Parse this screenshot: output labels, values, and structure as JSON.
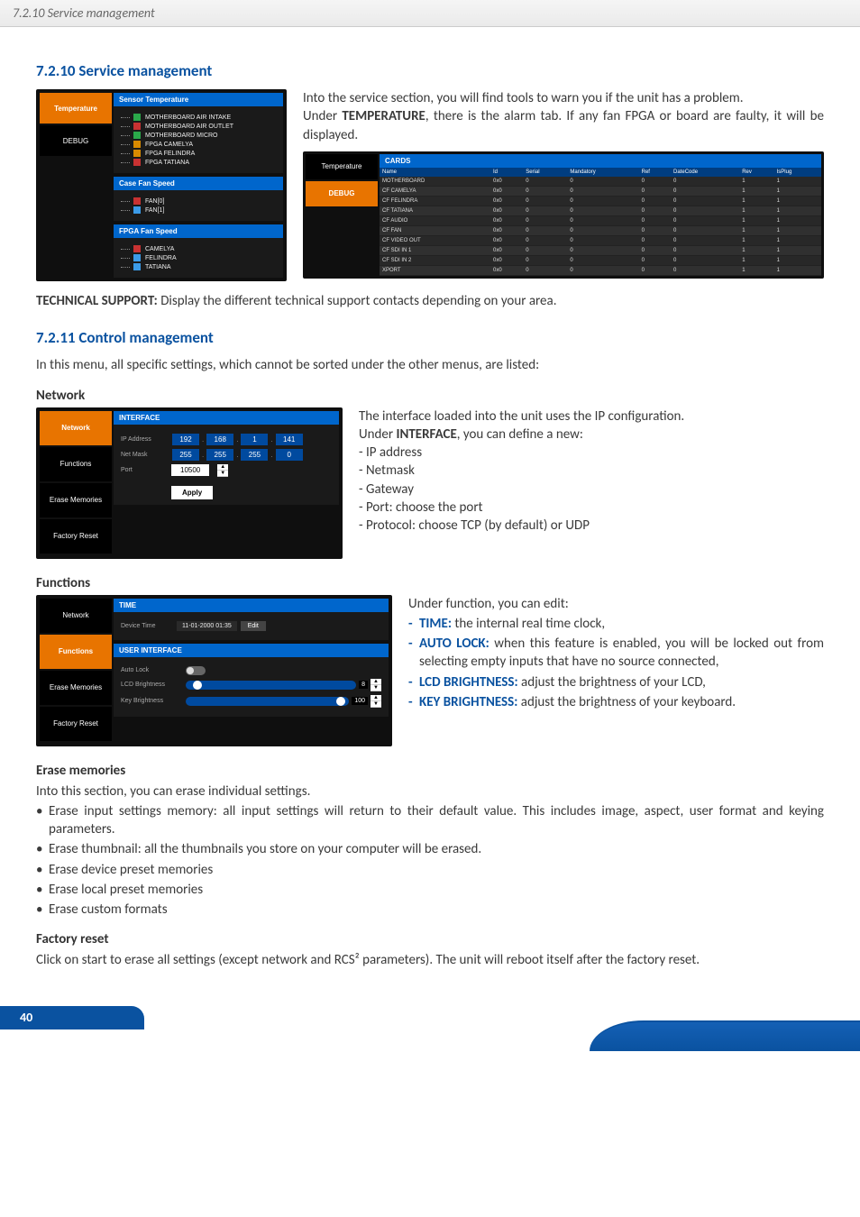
{
  "header": {
    "breadcrumb": "7.2.10 Service management"
  },
  "sec1": {
    "title": "7.2.10 Service management",
    "p1": "Into the service section, you will find tools to warn you if the unit has a problem.",
    "p2a": "Under ",
    "p2b": "TEMPERATURE",
    "p2c": ", there is the alarm tab. If any fan FPGA or board are faulty, it will be displayed.",
    "tech_label": "TECHNICAL SUPPORT:",
    "tech_text": " Display the different technical support contacts depending on your area."
  },
  "shot_temp": {
    "tab_active": "Temperature",
    "tab_inactive": "DEBUG",
    "panel1": "Sensor Temperature",
    "legend1": [
      "MOTHERBOARD AIR INTAKE",
      "MOTHERBOARD AIR OUTLET",
      "MOTHERBOARD MICRO",
      "FPGA CAMELYA",
      "FPGA FELINDRA",
      "FPGA TATIANA"
    ],
    "legend1_colors": [
      "#2aa84a",
      "#c83232",
      "#2aa84a",
      "#d88a00",
      "#d88a00",
      "#c83232"
    ],
    "panel2": "Case Fan Speed",
    "legend2": [
      "FAN[0]",
      "FAN[1]"
    ],
    "legend2_colors": [
      "#c83232",
      "#3b9be8"
    ],
    "panel3": "FPGA Fan Speed",
    "legend3": [
      "CAMELYA",
      "FELINDRA",
      "TATIANA"
    ],
    "legend3_colors": [
      "#c83232",
      "#3b9be8",
      "#3b9be8"
    ]
  },
  "shot_debug": {
    "tab_top": "Temperature",
    "tab_active": "DEBUG",
    "panel": "CARDS",
    "cols": [
      "Name",
      "Id",
      "Serial",
      "Mandatory",
      "Ref",
      "DateCode",
      "Rev",
      "IsPlug"
    ],
    "rows": [
      [
        "MOTHERBOARD",
        "0x0",
        "0",
        "0",
        "0",
        "0",
        "1",
        "1"
      ],
      [
        "CF CAMELYA",
        "0x0",
        "0",
        "0",
        "0",
        "0",
        "1",
        "1"
      ],
      [
        "CF FELINDRA",
        "0x0",
        "0",
        "0",
        "0",
        "0",
        "1",
        "1"
      ],
      [
        "CF TATIANA",
        "0x0",
        "0",
        "0",
        "0",
        "0",
        "1",
        "1"
      ],
      [
        "CF AUDIO",
        "0x0",
        "0",
        "0",
        "0",
        "0",
        "1",
        "1"
      ],
      [
        "CF FAN",
        "0x0",
        "0",
        "0",
        "0",
        "0",
        "1",
        "1"
      ],
      [
        "CF VIDEO OUT",
        "0x0",
        "0",
        "0",
        "0",
        "0",
        "1",
        "1"
      ],
      [
        "CF SDI IN 1",
        "0x0",
        "0",
        "0",
        "0",
        "0",
        "1",
        "1"
      ],
      [
        "CF SDI IN 2",
        "0x0",
        "0",
        "0",
        "0",
        "0",
        "1",
        "1"
      ],
      [
        "XPORT",
        "0x0",
        "0",
        "0",
        "0",
        "0",
        "1",
        "1"
      ]
    ]
  },
  "sec2": {
    "title": "7.2.11 Control management",
    "p": "In this menu, all specific settings, which cannot be sorted under the other menus, are listed:"
  },
  "network": {
    "head": "Network",
    "text1": "The interface loaded into the unit uses the IP configuration.",
    "text2a": "Under ",
    "text2b": "INTERFACE",
    "text2c": ", you can define a new:",
    "items": [
      "- IP address",
      "- Netmask",
      "- Gateway",
      "- Port: choose the port",
      "- Protocol: choose TCP (by default) or UDP"
    ],
    "shot": {
      "tabs": [
        "Network",
        "Functions",
        "Erase Memories",
        "Factory Reset"
      ],
      "active_index": 0,
      "panel": "INTERFACE",
      "ip_label": "IP Address",
      "ip": [
        "192",
        "168",
        "1",
        "141"
      ],
      "mask_label": "Net Mask",
      "mask": [
        "255",
        "255",
        "255",
        "0"
      ],
      "port_label": "Port",
      "port": "10500",
      "apply": "Apply"
    }
  },
  "functions": {
    "head": "Functions",
    "intro": "Under function, you can edit:",
    "items": [
      {
        "label": "TIME:",
        "text": " the internal real time clock,"
      },
      {
        "label": "AUTO LOCK:",
        "text": " when this feature is enabled, you will be locked out from selecting empty inputs that have no source connected,"
      },
      {
        "label": "LCD BRIGHTNESS:",
        "text": " adjust the brightness of your LCD,"
      },
      {
        "label": "KEY BRIGHTNESS:",
        "text": " adjust the brightness of your keyboard."
      }
    ],
    "shot": {
      "tabs": [
        "Network",
        "Functions",
        "Erase Memories",
        "Factory Reset"
      ],
      "active_index": 1,
      "panel1": "TIME",
      "device_time_label": "Device Time",
      "device_time": "11-01-2000 01:35",
      "edit": "Edit",
      "panel2": "USER INTERFACE",
      "autolock_label": "Auto Lock",
      "lcd_label": "LCD Brightness",
      "lcd_val": "8",
      "lcd_knob_pct": 4,
      "key_label": "Key Brightness",
      "key_val": "100",
      "key_knob_pct": 92
    }
  },
  "erase": {
    "head": "Erase memories",
    "p": "Into this section, you can erase individual settings.",
    "items": [
      "Erase input settings memory: all input settings will return to their default value. This includes image, aspect, user format and keying parameters.",
      "Erase thumbnail: all the thumbnails you store on your computer will be erased.",
      "Erase device preset memories",
      "Erase local preset memories",
      "Erase custom formats"
    ]
  },
  "factory": {
    "head": "Factory reset",
    "p": "Click on start to erase all settings (except network and RCS² parameters). The unit will reboot itself after the factory reset."
  },
  "page_num": "40"
}
